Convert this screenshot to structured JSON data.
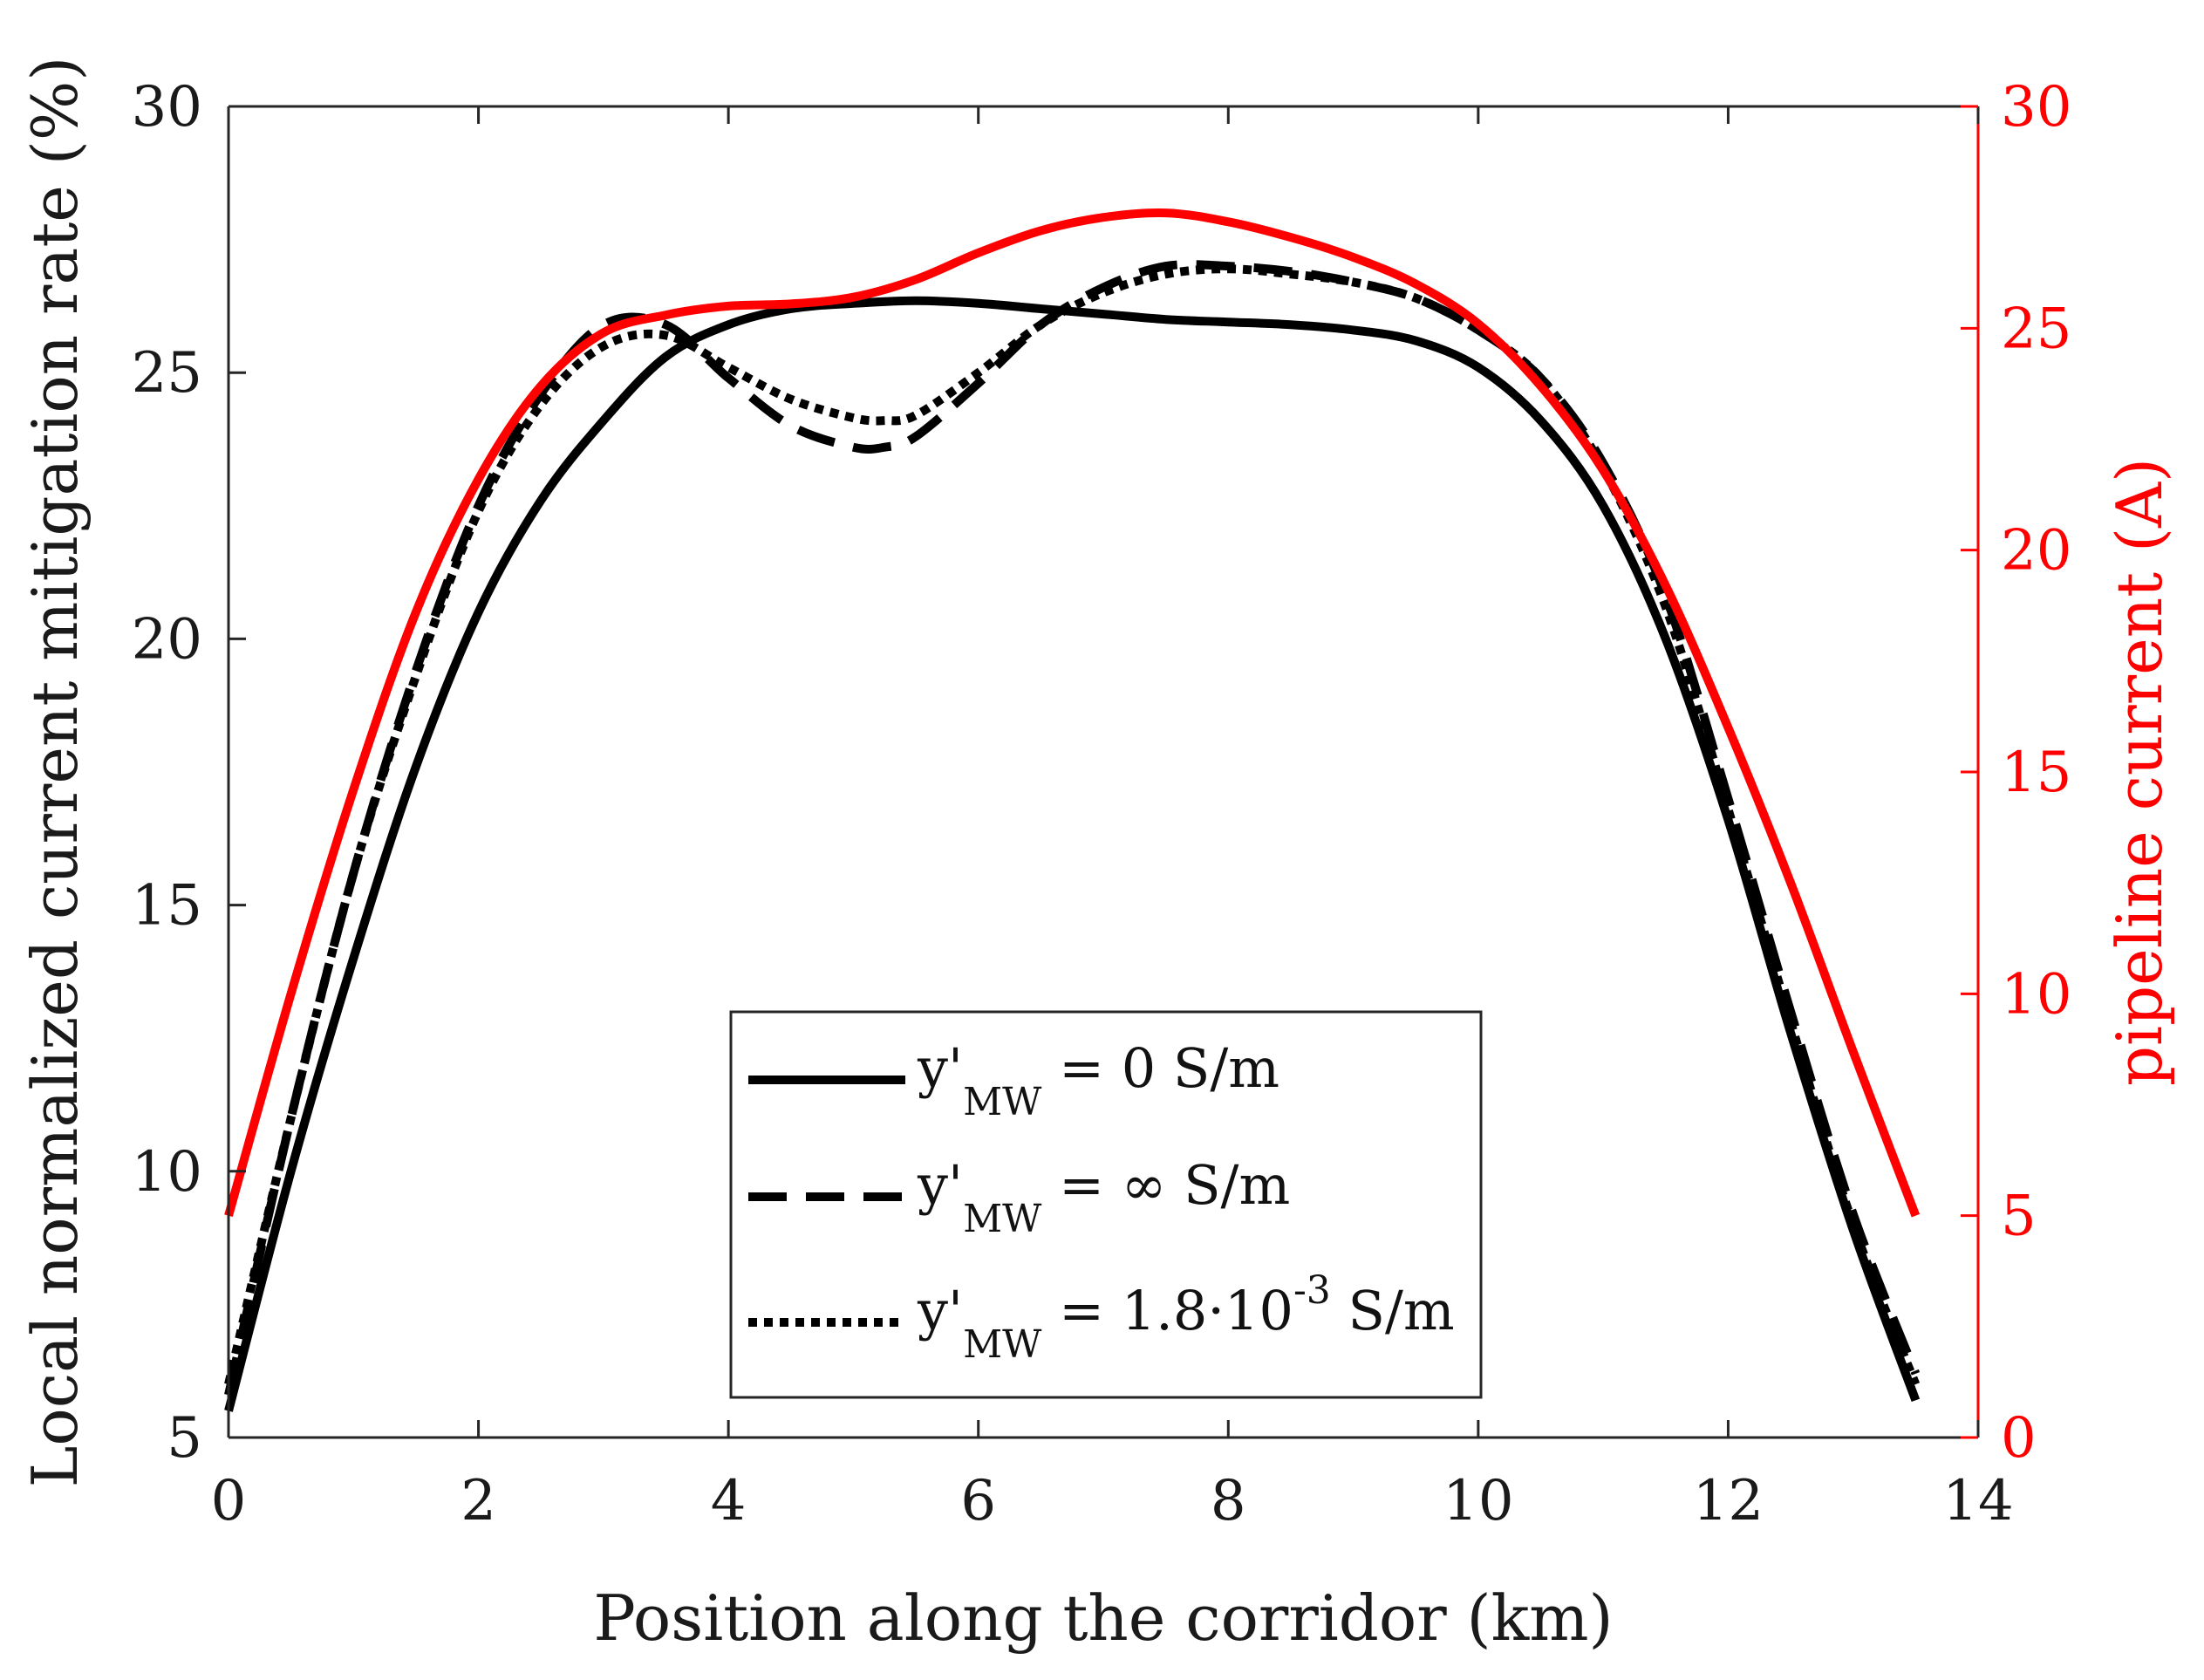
{
  "chart_data": {
    "type": "line",
    "title": "",
    "xlabel": "Position along the corridor (km)",
    "ylabel_left": "Local normalized current mitigation rate (%)",
    "ylabel_right": "pipeline current (A)",
    "xlim": [
      0,
      14
    ],
    "ylim_left": [
      5,
      30
    ],
    "ylim_right": [
      0,
      30
    ],
    "xticks": [
      0,
      2,
      4,
      6,
      8,
      10,
      12,
      14
    ],
    "yticks_left": [
      5,
      10,
      15,
      20,
      25,
      30
    ],
    "yticks_right": [
      0,
      5,
      10,
      15,
      20,
      25,
      30
    ],
    "grid": false,
    "legend_position": "lower-center",
    "colors": {
      "series": "#000000",
      "right_axis": "#ff0000"
    },
    "series": [
      {
        "name": "y'MW = 0 S/m",
        "legend": {
          "base": "y'",
          "sub": "MW",
          "rest": " = 0 S/m",
          "sup": "",
          "tail": ""
        },
        "axis": "left",
        "style": "solid",
        "x": [
          0.0,
          0.5,
          1.0,
          1.5,
          2.0,
          2.5,
          3.0,
          3.5,
          4.0,
          4.5,
          5.0,
          5.5,
          6.0,
          6.5,
          7.0,
          7.5,
          8.0,
          8.5,
          9.0,
          9.5,
          10.0,
          10.5,
          11.0,
          11.5,
          12.0,
          12.5,
          13.0,
          13.5
        ],
        "values": [
          5.5,
          10.0,
          14.0,
          17.6,
          20.5,
          22.6,
          24.1,
          25.3,
          25.9,
          26.2,
          26.3,
          26.35,
          26.3,
          26.2,
          26.1,
          26.0,
          25.95,
          25.9,
          25.8,
          25.6,
          25.1,
          24.1,
          22.5,
          20.0,
          16.6,
          12.6,
          8.9,
          5.7
        ]
      },
      {
        "name": "y'MW = ∞ S/m",
        "legend": {
          "base": "y'",
          "sub": "MW",
          "rest": " = ∞ S/m",
          "sup": "",
          "tail": ""
        },
        "axis": "left",
        "style": "dashed",
        "x": [
          0.0,
          0.5,
          1.0,
          1.5,
          2.0,
          2.5,
          3.0,
          3.5,
          4.0,
          4.5,
          5.0,
          5.25,
          5.5,
          6.0,
          6.5,
          7.0,
          7.5,
          8.0,
          8.5,
          9.0,
          9.5,
          10.0,
          10.5,
          11.0,
          11.5,
          12.0,
          12.5,
          13.0,
          13.5
        ],
        "values": [
          5.8,
          11.0,
          15.6,
          19.4,
          22.5,
          24.6,
          25.9,
          25.9,
          24.9,
          24.0,
          23.6,
          23.6,
          23.8,
          24.8,
          25.9,
          26.6,
          27.0,
          27.0,
          26.9,
          26.7,
          26.4,
          25.8,
          24.9,
          23.3,
          20.8,
          17.0,
          13.0,
          9.2,
          6.2
        ]
      },
      {
        "name": "y'MW = 1.8·10-3 S/m",
        "legend": {
          "base": "y'",
          "sub": "MW",
          "rest": " = 1.8·10",
          "sup": "-3",
          "tail": " S/m"
        },
        "axis": "left",
        "style": "dotted",
        "x": [
          0.0,
          0.5,
          1.0,
          1.5,
          2.0,
          2.5,
          3.0,
          3.5,
          4.0,
          4.5,
          5.0,
          5.25,
          5.5,
          6.0,
          6.5,
          7.0,
          7.5,
          8.0,
          8.5,
          9.0,
          9.5,
          10.0,
          10.5,
          11.0,
          11.5,
          12.0,
          12.5,
          13.0,
          13.5
        ],
        "values": [
          6.0,
          11.0,
          15.6,
          19.3,
          22.4,
          24.4,
          25.5,
          25.7,
          25.1,
          24.5,
          24.15,
          24.1,
          24.2,
          25.0,
          25.9,
          26.5,
          26.85,
          26.95,
          26.85,
          26.7,
          26.4,
          25.8,
          24.9,
          23.2,
          20.6,
          16.8,
          12.8,
          9.0,
          6.0
        ]
      },
      {
        "name": "pipeline current",
        "legend": null,
        "axis": "right",
        "style": "solid-red",
        "x": [
          0.0,
          0.5,
          1.0,
          1.5,
          2.0,
          2.5,
          3.0,
          3.5,
          4.0,
          4.5,
          5.0,
          5.5,
          6.0,
          6.5,
          7.0,
          7.5,
          8.0,
          8.5,
          9.0,
          9.5,
          10.0,
          10.5,
          11.0,
          11.5,
          12.0,
          12.5,
          13.0,
          13.5
        ],
        "values": [
          5.0,
          10.0,
          14.6,
          18.6,
          21.6,
          23.7,
          24.9,
          25.3,
          25.5,
          25.55,
          25.7,
          26.1,
          26.7,
          27.2,
          27.5,
          27.6,
          27.4,
          27.05,
          26.6,
          26.0,
          25.1,
          23.7,
          21.8,
          19.2,
          16.0,
          12.5,
          8.7,
          5.0
        ]
      }
    ]
  }
}
